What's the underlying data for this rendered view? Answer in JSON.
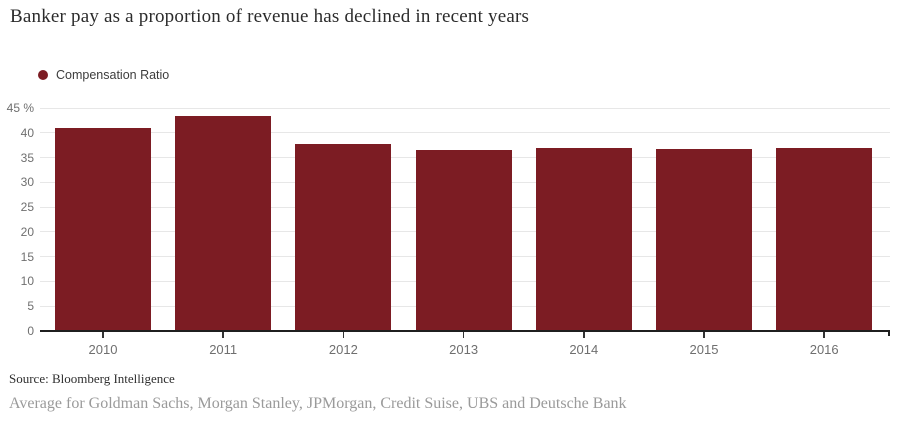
{
  "title": "Banker pay as a proportion of revenue has declined in recent years",
  "legend": {
    "label": "Compensation Ratio",
    "dot_color": "#7c1c23"
  },
  "chart_data": {
    "type": "bar",
    "title": "Banker pay as a proportion of revenue has declined in recent years",
    "series_name": "Compensation Ratio",
    "categories": [
      "2010",
      "2011",
      "2012",
      "2013",
      "2014",
      "2015",
      "2016"
    ],
    "values": [
      41,
      43.4,
      37.8,
      36.5,
      36.9,
      36.7,
      37
    ],
    "xlabel": "",
    "ylabel": "",
    "unit": "%",
    "ylim": [
      0,
      45
    ],
    "y_ticks": [
      0,
      5,
      10,
      15,
      20,
      25,
      30,
      35,
      40,
      45
    ],
    "y_top_tick_label": "45 %",
    "grid": "horizontal",
    "legend_position": "top-left",
    "bar_color": "#7c1c23",
    "gridline_color": "#e7e7e7",
    "axis_color": "#1f1f1f",
    "tick_label_color": "#6f6f6f"
  },
  "footer": {
    "source": "Source: Bloomberg Intelligence",
    "note": "Average for Goldman Sachs, Morgan Stanley, JPMorgan, Credit Suise, UBS and Deutsche Bank"
  }
}
